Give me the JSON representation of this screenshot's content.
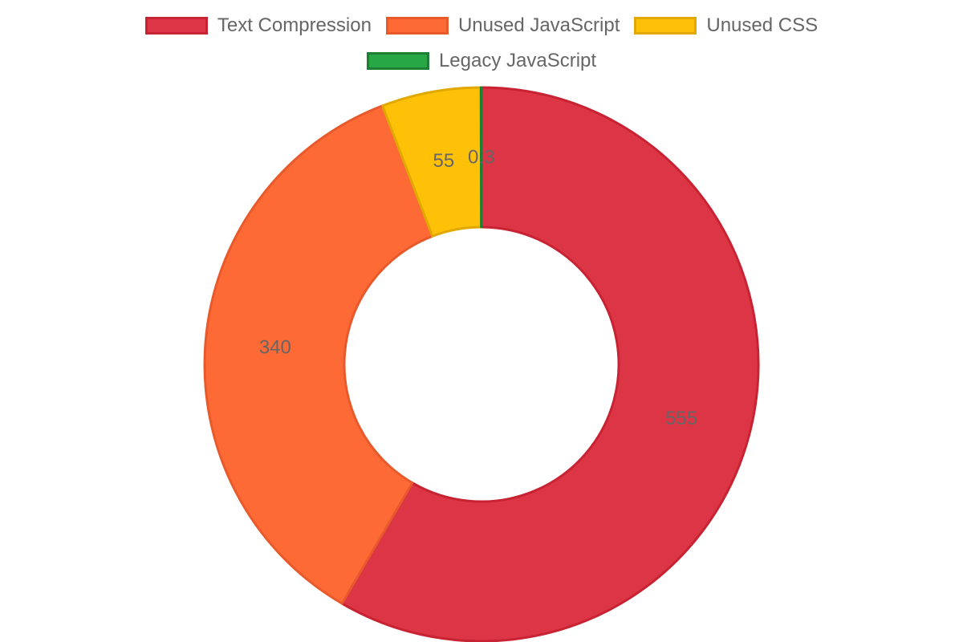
{
  "chart_data": {
    "type": "pie",
    "subtype": "doughnut",
    "legend_position": "top",
    "categories": [
      "Text Compression",
      "Unused JavaScript",
      "Unused CSS",
      "Legacy JavaScript"
    ],
    "values": [
      555,
      340,
      55,
      0.3
    ],
    "value_labels": [
      "555",
      "340",
      "55",
      "0.3"
    ],
    "colors": {
      "fill": [
        "#dc3545",
        "#fd6a35",
        "#ffc107",
        "#28a745"
      ],
      "border": [
        "#c82333",
        "#e8592b",
        "#e0a800",
        "#1e7e34"
      ]
    }
  }
}
